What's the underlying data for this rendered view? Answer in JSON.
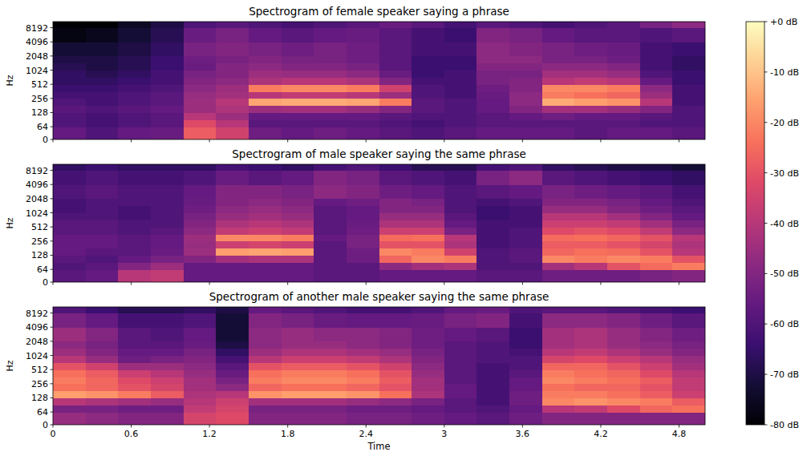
{
  "chart_data": [
    {
      "type": "heatmap",
      "title": "Spectrogram of female speaker saying a phrase",
      "y_label": "Hz",
      "log": "y",
      "tick_labels": "y",
      "xlim": [
        0,
        5.0
      ],
      "xticks": [
        0,
        0.6,
        1.2,
        1.8,
        2.4,
        3,
        3.6,
        4.2,
        4.8
      ],
      "ylim": [
        0,
        11025
      ],
      "yticks": [
        0,
        64,
        128,
        256,
        512,
        1024,
        2048,
        4096,
        8192
      ],
      "x_edges": [
        0,
        0.25,
        0.5,
        0.75,
        1.0,
        1.25,
        1.5,
        1.75,
        2.0,
        2.25,
        2.5,
        2.75,
        3.0,
        3.25,
        3.5,
        3.75,
        4.0,
        4.25,
        4.5,
        4.75,
        5.0
      ],
      "y_edges": [
        0,
        64,
        90,
        128,
        181,
        256,
        362,
        512,
        724,
        1024,
        1448,
        2048,
        4096,
        8192,
        11025
      ],
      "cells": [
        [
          -56,
          -60,
          -56,
          -55,
          -28,
          -35,
          -54,
          -56,
          -54,
          -56,
          -58,
          -60,
          -58,
          -56,
          -56,
          -56,
          -58,
          -56,
          -56,
          -58
        ],
        [
          -60,
          -62,
          -60,
          -58,
          -32,
          -40,
          -58,
          -58,
          -58,
          -58,
          -60,
          -62,
          -60,
          -58,
          -58,
          -58,
          -58,
          -58,
          -60,
          -60
        ],
        [
          -60,
          -62,
          -60,
          -58,
          -40,
          -45,
          -56,
          -56,
          -56,
          -56,
          -58,
          -60,
          -60,
          -58,
          -56,
          -54,
          -56,
          -56,
          -58,
          -60
        ],
        [
          -58,
          -60,
          -58,
          -56,
          -45,
          -42,
          -45,
          -44,
          -44,
          -46,
          -50,
          -58,
          -60,
          -56,
          -50,
          -44,
          -44,
          -46,
          -50,
          -60
        ],
        [
          -60,
          -62,
          -60,
          -58,
          -45,
          -40,
          -15,
          -14,
          -14,
          -15,
          -22,
          -58,
          -60,
          -56,
          -48,
          -14,
          -16,
          -18,
          -40,
          -62
        ],
        [
          -62,
          -62,
          -60,
          -58,
          -46,
          -44,
          -40,
          -38,
          -38,
          -40,
          -45,
          -60,
          -62,
          -55,
          -48,
          -22,
          -24,
          -26,
          -45,
          -62
        ],
        [
          -64,
          -64,
          -62,
          -60,
          -48,
          -45,
          -22,
          -20,
          -20,
          -22,
          -35,
          -60,
          -62,
          -54,
          -50,
          -20,
          -20,
          -22,
          -48,
          -62
        ],
        [
          -66,
          -66,
          -64,
          -62,
          -50,
          -48,
          -42,
          -40,
          -40,
          -42,
          -50,
          -62,
          -62,
          -52,
          -50,
          -40,
          -38,
          -40,
          -56,
          -64
        ],
        [
          -66,
          -68,
          -66,
          -62,
          -52,
          -50,
          -45,
          -46,
          -46,
          -48,
          -55,
          -64,
          -62,
          -52,
          -52,
          -44,
          -44,
          -46,
          -60,
          -64
        ],
        [
          -68,
          -70,
          -68,
          -64,
          -55,
          -50,
          -48,
          -50,
          -50,
          -52,
          -58,
          -64,
          -64,
          -50,
          -50,
          -48,
          -48,
          -50,
          -62,
          -66
        ],
        [
          -70,
          -70,
          -68,
          -64,
          -54,
          -52,
          -50,
          -52,
          -52,
          -54,
          -58,
          -64,
          -64,
          -48,
          -48,
          -52,
          -52,
          -54,
          -62,
          -66
        ],
        [
          -72,
          -72,
          -70,
          -66,
          -52,
          -50,
          -52,
          -54,
          -52,
          -54,
          -58,
          -62,
          -62,
          -48,
          -50,
          -52,
          -54,
          -55,
          -62,
          -64
        ],
        [
          -78,
          -76,
          -72,
          -68,
          -55,
          -52,
          -56,
          -58,
          -56,
          -55,
          -58,
          -62,
          -64,
          -50,
          -52,
          -56,
          -58,
          -58,
          -60,
          -58
        ],
        [
          -80,
          -80,
          -75,
          -70,
          -60,
          -58,
          -60,
          -62,
          -60,
          -58,
          -55,
          -58,
          -62,
          -58,
          -60,
          -62,
          -60,
          -58,
          -52,
          -48
        ]
      ]
    },
    {
      "type": "heatmap",
      "title": "Spectrogram of male speaker saying the same phrase",
      "y_label": "Hz",
      "log": "y",
      "tick_labels": "y",
      "xlim": [
        0,
        5.0
      ],
      "xticks": [
        0,
        0.6,
        1.2,
        1.8,
        2.4,
        3,
        3.6,
        4.2,
        4.8
      ],
      "ylim": [
        0,
        11025
      ],
      "yticks": [
        0,
        64,
        128,
        256,
        512,
        1024,
        2048,
        4096,
        8192
      ],
      "x_edges": [
        0,
        0.25,
        0.5,
        0.75,
        1.0,
        1.25,
        1.5,
        1.75,
        2.0,
        2.25,
        2.5,
        2.75,
        3.0,
        3.25,
        3.5,
        3.75,
        4.0,
        4.25,
        4.5,
        4.75,
        5.0
      ],
      "y_edges": [
        0,
        64,
        90,
        128,
        181,
        256,
        362,
        512,
        724,
        1024,
        1448,
        2048,
        4096,
        8192,
        11025
      ],
      "cells": [
        [
          -58,
          -56,
          -40,
          -38,
          -56,
          -56,
          -56,
          -56,
          -58,
          -58,
          -56,
          -56,
          -56,
          -58,
          -58,
          -54,
          -54,
          -54,
          -52,
          -50
        ],
        [
          -60,
          -58,
          -50,
          -45,
          -56,
          -56,
          -56,
          -56,
          -58,
          -58,
          -48,
          -44,
          -42,
          -60,
          -60,
          -44,
          -40,
          -30,
          -25,
          -22
        ],
        [
          -58,
          -60,
          -56,
          -52,
          -50,
          -44,
          -42,
          -42,
          -58,
          -54,
          -26,
          -20,
          -22,
          -60,
          -58,
          -20,
          -22,
          -20,
          -22,
          -30
        ],
        [
          -56,
          -58,
          -58,
          -55,
          -45,
          -16,
          -15,
          -16,
          -58,
          -54,
          -20,
          -22,
          -35,
          -60,
          -58,
          -26,
          -24,
          -25,
          -30,
          -40
        ],
        [
          -56,
          -56,
          -58,
          -56,
          -46,
          -36,
          -34,
          -36,
          -58,
          -52,
          -30,
          -30,
          -42,
          -62,
          -60,
          -28,
          -28,
          -30,
          -34,
          -42
        ],
        [
          -56,
          -56,
          -58,
          -56,
          -45,
          -20,
          -20,
          -22,
          -56,
          -52,
          -25,
          -24,
          -40,
          -62,
          -60,
          -25,
          -24,
          -26,
          -30,
          -40
        ],
        [
          -58,
          -58,
          -60,
          -58,
          -48,
          -38,
          -36,
          -38,
          -58,
          -54,
          -36,
          -36,
          -52,
          -62,
          -60,
          -32,
          -30,
          -32,
          -38,
          -48
        ],
        [
          -58,
          -58,
          -60,
          -60,
          -50,
          -42,
          -40,
          -42,
          -58,
          -55,
          -42,
          -42,
          -56,
          -62,
          -62,
          -36,
          -36,
          -38,
          -44,
          -52
        ],
        [
          -60,
          -60,
          -62,
          -60,
          -52,
          -46,
          -44,
          -46,
          -58,
          -56,
          -46,
          -46,
          -58,
          -64,
          -62,
          -40,
          -40,
          -44,
          -50,
          -56
        ],
        [
          -62,
          -60,
          -62,
          -60,
          -54,
          -48,
          -46,
          -48,
          -58,
          -56,
          -50,
          -50,
          -60,
          -64,
          -62,
          -46,
          -46,
          -50,
          -54,
          -58
        ],
        [
          -62,
          -60,
          -60,
          -60,
          -55,
          -50,
          -48,
          -50,
          -56,
          -54,
          -50,
          -52,
          -60,
          -62,
          -60,
          -50,
          -50,
          -52,
          -56,
          -60
        ],
        [
          -60,
          -58,
          -60,
          -60,
          -56,
          -50,
          -50,
          -52,
          -48,
          -50,
          -54,
          -56,
          -60,
          -58,
          -56,
          -52,
          -54,
          -56,
          -58,
          -62
        ],
        [
          -62,
          -60,
          -62,
          -62,
          -60,
          -55,
          -58,
          -56,
          -50,
          -52,
          -58,
          -60,
          -62,
          -52,
          -48,
          -58,
          -60,
          -62,
          -64,
          -66
        ],
        [
          -66,
          -64,
          -66,
          -66,
          -66,
          -62,
          -64,
          -66,
          -62,
          -60,
          -64,
          -68,
          -68,
          -62,
          -60,
          -66,
          -68,
          -70,
          -70,
          -72
        ]
      ]
    },
    {
      "type": "heatmap",
      "title": "Spectrogram of another male speaker saying the same phrase",
      "x_label": "Time",
      "y_label": "Hz",
      "log": "y",
      "tick_labels": true,
      "xlim": [
        0,
        5.0
      ],
      "xticks": [
        0,
        0.6,
        1.2,
        1.8,
        2.4,
        3,
        3.6,
        4.2,
        4.8
      ],
      "ylim": [
        0,
        11025
      ],
      "yticks": [
        0,
        64,
        128,
        256,
        512,
        1024,
        2048,
        4096,
        8192
      ],
      "x_edges": [
        0,
        0.25,
        0.5,
        0.75,
        1.0,
        1.25,
        1.5,
        1.75,
        2.0,
        2.25,
        2.5,
        2.75,
        3.0,
        3.25,
        3.5,
        3.75,
        4.0,
        4.25,
        4.5,
        4.75,
        5.0
      ],
      "y_edges": [
        0,
        64,
        90,
        128,
        181,
        256,
        362,
        512,
        724,
        1024,
        1448,
        2048,
        4096,
        8192,
        11025
      ],
      "cells": [
        [
          -46,
          -48,
          -50,
          -50,
          -34,
          -32,
          -50,
          -50,
          -50,
          -52,
          -52,
          -54,
          -56,
          -58,
          -54,
          -50,
          -50,
          -50,
          -50,
          -50
        ],
        [
          -52,
          -52,
          -54,
          -54,
          -38,
          -34,
          -52,
          -52,
          -52,
          -54,
          -54,
          -56,
          -58,
          -60,
          -56,
          -40,
          -38,
          -32,
          -26,
          -24
        ],
        [
          -40,
          -42,
          -44,
          -46,
          -40,
          -36,
          -44,
          -44,
          -44,
          -46,
          -48,
          -52,
          -58,
          -62,
          -54,
          -20,
          -18,
          -20,
          -22,
          -28
        ],
        [
          -16,
          -18,
          -22,
          -28,
          -42,
          -40,
          -18,
          -16,
          -16,
          -18,
          -24,
          -42,
          -56,
          -62,
          -54,
          -22,
          -22,
          -24,
          -28,
          -36
        ],
        [
          -24,
          -26,
          -30,
          -34,
          -44,
          -48,
          -26,
          -24,
          -24,
          -26,
          -30,
          -44,
          -56,
          -62,
          -56,
          -24,
          -26,
          -26,
          -30,
          -38
        ],
        [
          -22,
          -26,
          -32,
          -36,
          -44,
          -52,
          -22,
          -20,
          -20,
          -22,
          -28,
          -44,
          -58,
          -62,
          -56,
          -20,
          -22,
          -24,
          -28,
          -38
        ],
        [
          -24,
          -28,
          -36,
          -40,
          -46,
          -55,
          -24,
          -22,
          -22,
          -24,
          -30,
          -46,
          -58,
          -62,
          -58,
          -22,
          -24,
          -26,
          -32,
          -40
        ],
        [
          -30,
          -35,
          -45,
          -45,
          -48,
          -58,
          -30,
          -28,
          -28,
          -30,
          -35,
          -48,
          -58,
          -62,
          -60,
          -26,
          -26,
          -30,
          -36,
          -44
        ],
        [
          -40,
          -46,
          -54,
          -52,
          -50,
          -62,
          -40,
          -36,
          -36,
          -38,
          -42,
          -50,
          -58,
          -60,
          -60,
          -34,
          -32,
          -36,
          -40,
          -46
        ],
        [
          -45,
          -50,
          -56,
          -56,
          -52,
          -66,
          -45,
          -42,
          -42,
          -44,
          -46,
          -52,
          -58,
          -60,
          -62,
          -40,
          -38,
          -42,
          -46,
          -50
        ],
        [
          -48,
          -52,
          -58,
          -58,
          -55,
          -70,
          -48,
          -46,
          -46,
          -48,
          -50,
          -54,
          -58,
          -60,
          -64,
          -44,
          -42,
          -46,
          -48,
          -52
        ],
        [
          -45,
          -50,
          -58,
          -60,
          -56,
          -72,
          -48,
          -46,
          -48,
          -48,
          -50,
          -54,
          -56,
          -58,
          -64,
          -44,
          -42,
          -46,
          -50,
          -54
        ],
        [
          -52,
          -56,
          -62,
          -62,
          -60,
          -72,
          -50,
          -52,
          -55,
          -56,
          -56,
          -55,
          -52,
          -50,
          -62,
          -48,
          -48,
          -50,
          -54,
          -58
        ],
        [
          -60,
          -64,
          -68,
          -68,
          -66,
          -70,
          -56,
          -58,
          -60,
          -62,
          -62,
          -60,
          -56,
          -55,
          -60,
          -58,
          -58,
          -60,
          -62,
          -64
        ]
      ]
    }
  ],
  "colorbar": {
    "zlim": [
      -80,
      0
    ],
    "zticks": [
      {
        "value": 0,
        "label": "+0 dB"
      },
      {
        "value": -10,
        "label": "-10 dB"
      },
      {
        "value": -20,
        "label": "-20 dB"
      },
      {
        "value": -30,
        "label": "-30 dB"
      },
      {
        "value": -40,
        "label": "-40 dB"
      },
      {
        "value": -50,
        "label": "-50 dB"
      },
      {
        "value": -60,
        "label": "-60 dB"
      },
      {
        "value": -70,
        "label": "-70 dB"
      },
      {
        "value": -80,
        "label": "-80 dB"
      }
    ]
  }
}
